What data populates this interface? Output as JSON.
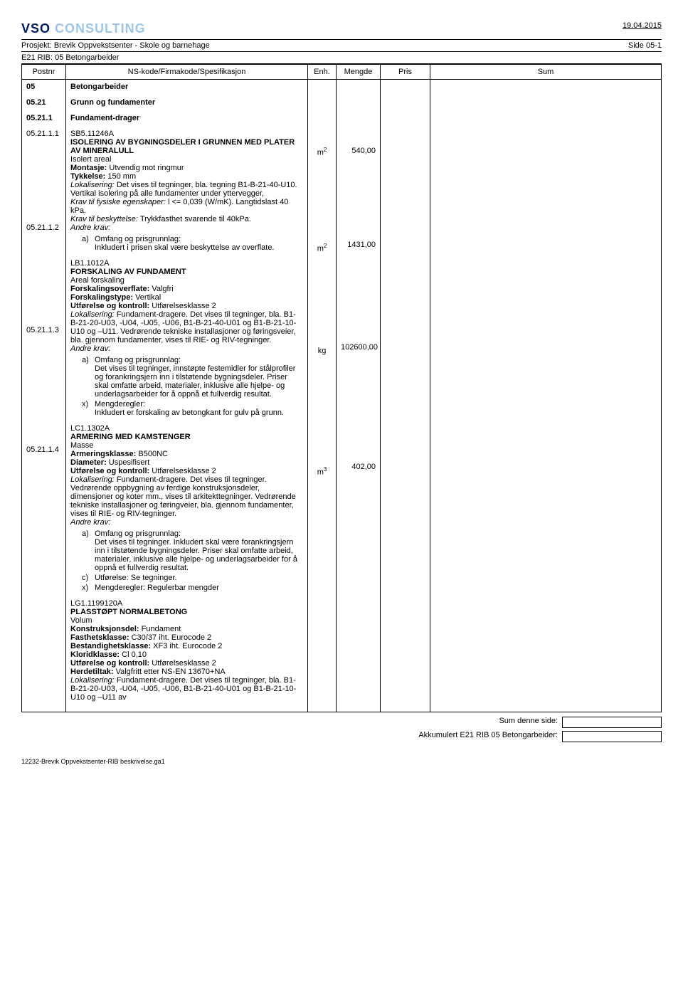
{
  "header": {
    "logo_part1": "VSO ",
    "logo_part2": "CONSULTING",
    "date": "19.04.2015",
    "project_label": "Prosjekt: Brevik Oppvekstsenter - Skole og barnehage",
    "page_label": "Side 05-1",
    "section_title": "E21 RIB: 05 Betongarbeider"
  },
  "columns": {
    "postnr": "Postnr",
    "spec": "NS-kode/Firmakode/Spesifikasjon",
    "enh": "Enh.",
    "mengde": "Mengde",
    "pris": "Pris",
    "sum": "Sum"
  },
  "rows": [
    {
      "post": "05",
      "title": "Betongarbeider",
      "bold": true
    },
    {
      "post": "05.21",
      "title": "Grunn og fundamenter",
      "bold": true
    },
    {
      "post": "05.21.1",
      "title": "Fundament-drager",
      "bold": true
    }
  ],
  "items": [
    {
      "post": "05.21.1.1",
      "code": "SB5.11246A",
      "heading": "ISOLERING AV BYGNINGSDELER I GRUNNEN MED PLATER AV MINERALULL",
      "measure_label": "Isolert areal",
      "enh": "m",
      "enh_sup": "2",
      "mengde": "540,00",
      "lines": [
        {
          "b": "Montasje: ",
          "t": "Utvendig mot ringmur"
        },
        {
          "b": "Tykkelse: ",
          "t": "150 mm"
        },
        {
          "i": "Lokalisering: ",
          "t": "Det vises til tegninger, bla. tegning B1-B-21-40-U10. Vertikal isolering på alle fundamenter under yttervegger,"
        },
        {
          "i": "Krav til fysiske egenskaper: ",
          "t": "l <= 0,039 (W/mK). Langtidslast 40 kPa."
        },
        {
          "i": "Krav til beskyttelse: ",
          "t": "Trykkfasthet svarende til 40kPa."
        },
        {
          "i": "Andre krav:",
          "t": ""
        }
      ],
      "sub": [
        {
          "m": "a)",
          "t": "Omfang og prisgrunnlag:\nInkludert i prisen skal være beskyttelse av overflate."
        }
      ]
    },
    {
      "post": "05.21.1.2",
      "code": "LB1.1012A",
      "heading": "FORSKALING AV FUNDAMENT",
      "measure_label": "Areal forskaling",
      "enh": "m",
      "enh_sup": "2",
      "mengde": "1431,00",
      "lines": [
        {
          "b": "Forskalingsoverflate: ",
          "t": "Valgfri"
        },
        {
          "b": "Forskalingstype: ",
          "t": "Vertikal"
        },
        {
          "b": "Utførelse og kontroll: ",
          "t": "Utførelsesklasse 2"
        },
        {
          "i": "Lokalisering: ",
          "t": "Fundament-dragere. Det vises til tegninger, bla. B1-B-21-20-U03, -U04, -U05, -U06, B1-B-21-40-U01 og B1-B-21-10-U10 og –U11. Vedrørende tekniske installasjoner og føringsveier, bla. gjennom fundamenter, vises til RIE- og RIV-tegninger."
        },
        {
          "i": "Andre krav:",
          "t": ""
        }
      ],
      "sub": [
        {
          "m": "a)",
          "t": "Omfang og prisgrunnlag:\nDet vises til tegninger, innstøpte festemidler for stålprofiler og forankringsjern inn i tilstøtende bygningsdeler. Priser skal omfatte arbeid, materialer, inklusive alle hjelpe- og underlagsarbeider for å oppnå et fullverdig resultat."
        },
        {
          "m": "x)",
          "t": "Mengderegler:\nInkludert er forskaling av betongkant for gulv på grunn."
        }
      ]
    },
    {
      "post": "05.21.1.3",
      "code": "LC1.1302A",
      "heading": "ARMERING MED KAMSTENGER",
      "measure_label": "Masse",
      "enh": "kg",
      "enh_sup": "",
      "mengde": "102600,00",
      "lines": [
        {
          "b": "Armeringsklasse: ",
          "t": "B500NC"
        },
        {
          "b": "Diameter: ",
          "t": "Uspesifisert"
        },
        {
          "b": "Utførelse og kontroll: ",
          "t": "Utførelsesklasse 2"
        },
        {
          "i": "Lokalisering: ",
          "t": "Fundament-dragere. Det vises til tegninger. Vedrørende oppbygning av ferdige konstruksjonsdeler, dimensjoner og koter mm., vises til arkitekttegninger. Vedrørende tekniske installasjoner og føringveier, bla. gjennom fundamenter, vises til RIE- og RIV-tegninger."
        },
        {
          "i": "Andre krav:",
          "t": ""
        }
      ],
      "sub": [
        {
          "m": "a)",
          "t": "Omfang og prisgrunnlag:\nDet vises til tegninger. Inkludert skal være forankringsjern inn i tilstøtende bygningsdeler. Priser skal omfatte arbeid, materialer, inklusive alle hjelpe- og underlagsarbeider for å oppnå et fullverdig resultat."
        },
        {
          "m": "c)",
          "t": "Utførelse: Se tegninger."
        },
        {
          "m": "x)",
          "t": "Mengderegler: Regulerbar mengder"
        }
      ]
    },
    {
      "post": "05.21.1.4",
      "code": "LG1.1199120A",
      "heading": "PLASSTØPT NORMALBETONG",
      "measure_label": "Volum",
      "enh": "m",
      "enh_sup": "3",
      "mengde": "402,00",
      "lines": [
        {
          "b": "Konstruksjonsdel: ",
          "t": "Fundament"
        },
        {
          "b": "Fasthetsklasse: ",
          "t": "C30/37 iht. Eurocode 2"
        },
        {
          "b": "Bestandighetsklasse: ",
          "t": "XF3 iht. Eurocode 2"
        },
        {
          "b": "Kloridklasse: ",
          "t": "Cl 0,10"
        },
        {
          "b": "Utførelse og kontroll: ",
          "t": "Utførelsesklasse 2"
        },
        {
          "b": "Herdetiltak: ",
          "t": "Valgfritt etter NS-EN 13670+NA"
        },
        {
          "i": "Lokalisering: ",
          "t": "Fundament-dragere. Det vises til tegninger, bla. B1-B-21-20-U03, -U04, -U05, -U06, B1-B-21-40-U01 og B1-B-21-10-U10 og –U11 av"
        }
      ],
      "sub": []
    }
  ],
  "footer": {
    "sum_side": "Sum denne side:",
    "sum_akk": "Akkumulert E21 RIB 05 Betongarbeider:",
    "file": "12232-Brevik Oppvekstsenter-RIB beskrivelse.ga1"
  }
}
